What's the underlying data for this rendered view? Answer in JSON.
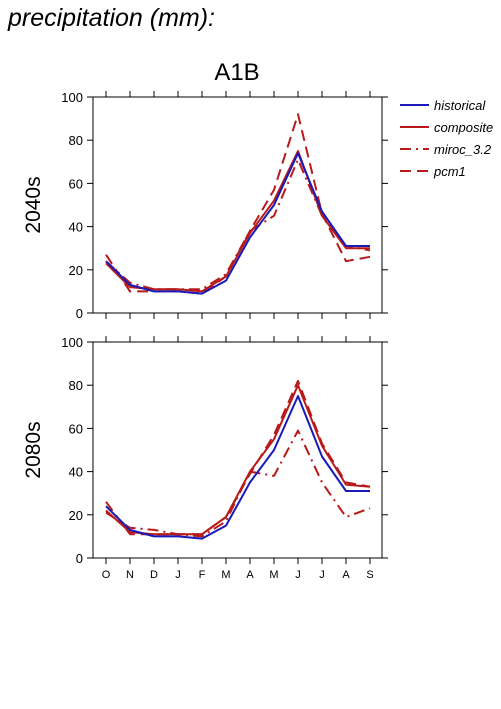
{
  "page": {
    "title": "precipitation (mm):"
  },
  "chart_data": {
    "type": "line",
    "title": "A1B",
    "categories": [
      "O",
      "N",
      "D",
      "J",
      "F",
      "M",
      "A",
      "M",
      "J",
      "J",
      "A",
      "S"
    ],
    "ylim": [
      0,
      100
    ],
    "yticks": [
      0,
      20,
      40,
      60,
      80,
      100
    ],
    "grid": false,
    "legend_position": "top-right outside",
    "legend": [
      {
        "name": "historical",
        "color": "#1a1ab8",
        "dash": "solid"
      },
      {
        "name": "composite",
        "color": "#b81a1a",
        "dash": "solid"
      },
      {
        "name": "miroc_3.2",
        "color": "#b81a1a",
        "dash": "dashdot"
      },
      {
        "name": "pcm1",
        "color": "#b81a1a",
        "dash": "dashed"
      }
    ],
    "panels": [
      {
        "ylabel": "2040s",
        "series": [
          {
            "name": "historical",
            "values": [
              24,
              13,
              10,
              10,
              9,
              15,
              35,
              50,
              74,
              47,
              31,
              31
            ]
          },
          {
            "name": "composite",
            "values": [
              23,
              12,
              11,
              11,
              10,
              17,
              37,
              52,
              75,
              45,
              30,
              30
            ]
          },
          {
            "name": "miroc_3.2",
            "values": [
              24,
              14,
              11,
              11,
              11,
              18,
              38,
              45,
              71,
              45,
              31,
              29
            ]
          },
          {
            "name": "pcm1",
            "values": [
              27,
              10,
              10,
              10,
              9,
              17,
              38,
              57,
              92,
              46,
              24,
              26
            ]
          }
        ]
      },
      {
        "ylabel": "2080s",
        "series": [
          {
            "name": "historical",
            "values": [
              24,
              13,
              10,
              10,
              9,
              15,
              35,
              50,
              75,
              47,
              31,
              31
            ]
          },
          {
            "name": "composite",
            "values": [
              22,
              12,
              11,
              11,
              11,
              19,
              40,
              55,
              80,
              52,
              34,
              33
            ]
          },
          {
            "name": "miroc_3.2",
            "values": [
              21,
              14,
              13,
              11,
              10,
              17,
              40,
              38,
              59,
              35,
              19,
              23
            ]
          },
          {
            "name": "pcm1",
            "values": [
              26,
              11,
              11,
              11,
              11,
              19,
              39,
              57,
              82,
              53,
              35,
              33
            ]
          }
        ]
      }
    ]
  }
}
